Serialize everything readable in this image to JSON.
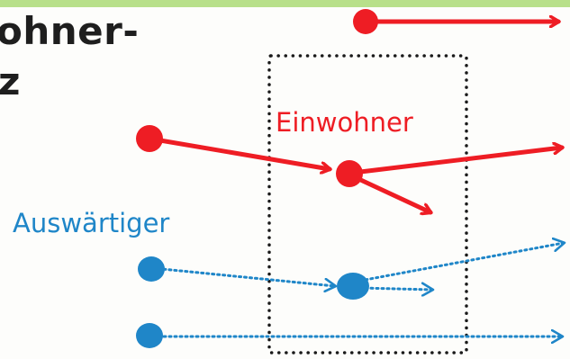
{
  "heading": {
    "line1": "ohner-",
    "line2": "z"
  },
  "labels": {
    "resident": "Einwohner",
    "visitor": "Auswärtiger"
  },
  "colors": {
    "resident": "#ee1d24",
    "visitor": "#1f86c8",
    "frame": "#1a1a1a",
    "top_band": "#b8e08a",
    "heading": "#1e1e1e"
  },
  "icons": {
    "resident_flow": "solid-arrow",
    "visitor_flow": "dotted-arrow",
    "point": "filled-circle"
  }
}
